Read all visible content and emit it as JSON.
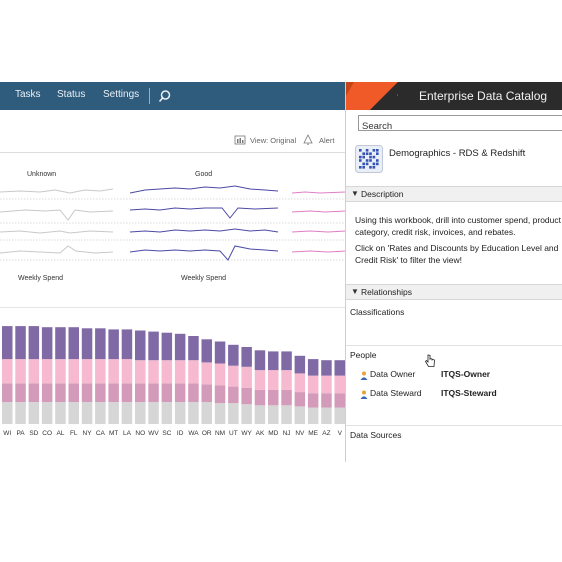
{
  "dashboard": {
    "nav": {
      "tasks": "Tasks",
      "status": "Status",
      "settings": "Settings"
    },
    "search_icon": "search-icon",
    "toolbar": {
      "view_original": "View: Original",
      "alert": "Alert"
    },
    "sparklines": {
      "headers": [
        "Unknown",
        "Good"
      ],
      "footers": [
        "Weekly Spend",
        "Weekly Spend"
      ]
    },
    "colors": {
      "topbar": "#2f5b7c",
      "purple": "#7f6aa6",
      "pink": "#f6b9cf",
      "mauve": "#d49ab9",
      "gray": "#d6d6d6"
    }
  },
  "catalog": {
    "title": "Enterprise Data Catalog",
    "search_placeholder": "Search",
    "asset": {
      "title": "Demographics - RDS & Redshift",
      "icon": "table-grid-icon"
    },
    "sections": {
      "description": "Description",
      "relationships": "Relationships"
    },
    "description": {
      "p1": "Using this workbook, drill into customer spend, product category, credit risk, invoices, and rebates.",
      "p2": "Click on 'Rates and Discounts by Education Level and Credit Risk' to filter the view!"
    },
    "classifications_label": "Classifications",
    "people": {
      "label": "People",
      "owner_key": "Data Owner",
      "owner_value": "ITQS-Owner",
      "steward_key": "Data Steward",
      "steward_value": "ITQS-Steward"
    },
    "data_sources_label": "Data Sources",
    "colors": {
      "header_bg": "#2b2b2b",
      "accent": "#f05a28"
    }
  },
  "chart_data": {
    "type": "bar",
    "categories": [
      "WI",
      "PA",
      "SD",
      "CO",
      "AL",
      "FL",
      "NY",
      "CA",
      "MT",
      "LA",
      "NO",
      "WV",
      "SC",
      "ID",
      "WA",
      "OR",
      "NM",
      "UT",
      "WY",
      "AK",
      "MD",
      "NJ",
      "NV",
      "ME",
      "AZ",
      "V"
    ],
    "series": [
      {
        "values": [
          20,
          20,
          20,
          20,
          20,
          20,
          20,
          20,
          20,
          20,
          20,
          20,
          20,
          20,
          20,
          20,
          19,
          19,
          18,
          17,
          17,
          17,
          16,
          15,
          15,
          15
        ]
      },
      {
        "values": [
          17,
          17,
          17,
          17,
          17,
          17,
          17,
          17,
          17,
          17,
          17,
          17,
          17,
          17,
          17,
          16,
          16,
          15,
          15,
          14,
          14,
          14,
          13,
          13,
          13,
          13
        ]
      },
      {
        "values": [
          22,
          22,
          22,
          22,
          22,
          22,
          22,
          22,
          22,
          22,
          21,
          21,
          21,
          21,
          21,
          20,
          20,
          19,
          19,
          18,
          18,
          18,
          17,
          16,
          16,
          16
        ]
      },
      {
        "values": [
          30,
          30,
          30,
          29,
          29,
          29,
          28,
          28,
          27,
          27,
          27,
          26,
          25,
          24,
          22,
          21,
          20,
          19,
          18,
          18,
          17,
          17,
          16,
          15,
          14,
          14
        ]
      }
    ],
    "stack_colors": [
      "#d6d6d6",
      "#d49ab9",
      "#f6b9cf",
      "#7f6aa6"
    ]
  }
}
